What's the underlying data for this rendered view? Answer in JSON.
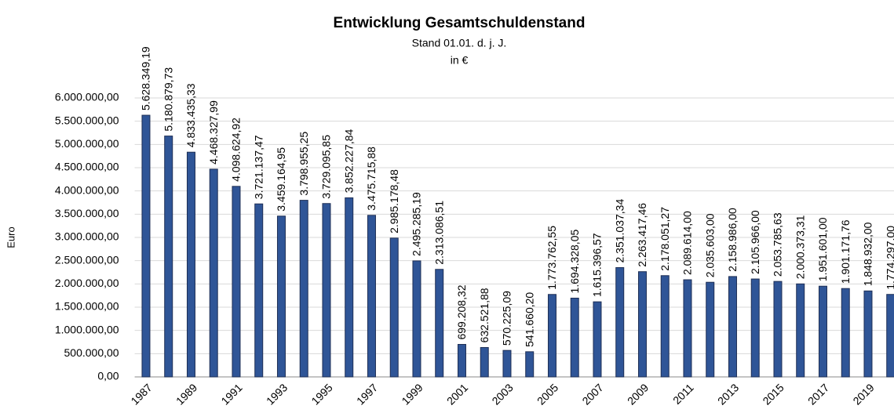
{
  "chart_data": {
    "type": "bar",
    "title": "Entwicklung Gesamtschuldenstand",
    "subtitle": [
      "Stand 01.01. d. j. J.",
      "in €"
    ],
    "y_label": "Euro",
    "color": "#2f5597",
    "grid": true,
    "categories": [
      "1987",
      null,
      "1989",
      null,
      "1991",
      null,
      "1993",
      null,
      "1995",
      null,
      "1997",
      null,
      "1999",
      null,
      "2001",
      null,
      "2003",
      null,
      "2005",
      null,
      "2007",
      null,
      "2009",
      null,
      "2011",
      null,
      "2013",
      null,
      "2015",
      null,
      "2017",
      null,
      "2019",
      null
    ],
    "values": [
      5628349.19,
      5180879.73,
      4833435.33,
      4468327.99,
      4098624.92,
      3721137.47,
      3459164.95,
      3798955.25,
      3729095.85,
      3852227.84,
      3475715.88,
      2985178.48,
      2495285.19,
      2313086.51,
      699208.32,
      632521.88,
      570225.09,
      541660.2,
      1773762.55,
      1694328.05,
      1615396.57,
      2351037.34,
      2263417.46,
      2178051.27,
      2089614.0,
      2035603.0,
      2158986.0,
      2105966.0,
      2053785.63,
      2000373.31,
      1951601.0,
      1901171.76,
      1848932.0,
      1774297.0
    ],
    "value_labels": [
      "5.628.349,19",
      "5.180.879,73",
      "4.833.435,33",
      "4.468.327,99",
      "4.098.624,92",
      "3.721.137,47",
      "3.459.164,95",
      "3.798.955,25",
      "3.729.095,85",
      "3.852.227,84",
      "3.475.715,88",
      "2.985.178,48",
      "2.495.285,19",
      "2.313.086,51",
      "699.208,32",
      "632.521,88",
      "570.225,09",
      "541.660,20",
      "1.773.762,55",
      "1.694.328,05",
      "1.615.396,57",
      "2.351.037,34",
      "2.263.417,46",
      "2.178.051,27",
      "2.089.614,00",
      "2.035.603,00",
      "2.158.986,00",
      "2.105.966,00",
      "2.053.785,63",
      "2.000.373,31",
      "1.951.601,00",
      "1.901.171,76",
      "1.848.932,00",
      "1.774.297,00"
    ],
    "ylim": [
      0,
      6000000
    ],
    "yticks": [
      {
        "value": 0,
        "label": "0,00"
      },
      {
        "value": 500000,
        "label": "500.000,00"
      },
      {
        "value": 1000000,
        "label": "1.000.000,00"
      },
      {
        "value": 1500000,
        "label": "1.500.000,00"
      },
      {
        "value": 2000000,
        "label": "2.000.000,00"
      },
      {
        "value": 2500000,
        "label": "2.500.000,00"
      },
      {
        "value": 3000000,
        "label": "3.000.000,00"
      },
      {
        "value": 3500000,
        "label": "3.500.000,00"
      },
      {
        "value": 4000000,
        "label": "4.000.000,00"
      },
      {
        "value": 4500000,
        "label": "4.500.000,00"
      },
      {
        "value": 5000000,
        "label": "5.000.000,00"
      },
      {
        "value": 5500000,
        "label": "5.500.000,00"
      },
      {
        "value": 6000000,
        "label": "6.000.000,00"
      }
    ]
  }
}
